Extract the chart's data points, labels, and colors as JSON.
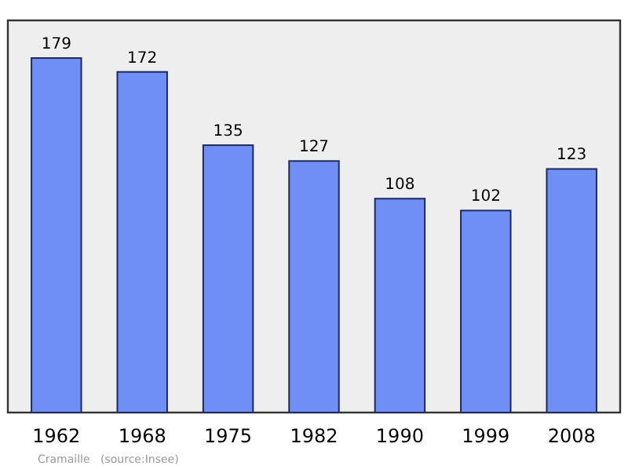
{
  "chart_data": {
    "type": "bar",
    "categories": [
      "1962",
      "1968",
      "1975",
      "1982",
      "1990",
      "1999",
      "2008"
    ],
    "values": [
      179,
      172,
      135,
      127,
      108,
      102,
      123
    ],
    "color": "#6f8ff7",
    "data_labels": true,
    "grid": false,
    "tick_labels": "x",
    "annotations": [
      "Cramaille",
      "(source:Insee)"
    ]
  }
}
